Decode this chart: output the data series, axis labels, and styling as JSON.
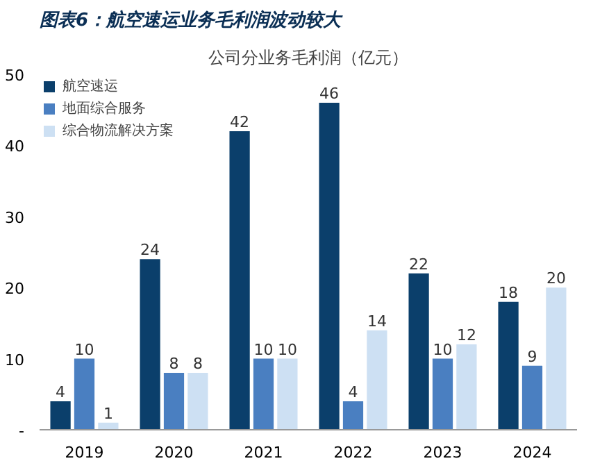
{
  "chart_data": {
    "type": "bar",
    "title": "图表6：航空速运业务毛利润波动较大",
    "subtitle": "公司分业务毛利润（亿元）",
    "categories": [
      "2019",
      "2020",
      "2021",
      "2022",
      "2023",
      "2024"
    ],
    "series": [
      {
        "name": "航空速运",
        "color": "#0b3f6b",
        "values": [
          4,
          24,
          42,
          46,
          22,
          18
        ]
      },
      {
        "name": "地面综合服务",
        "color": "#4a7fc1",
        "values": [
          10,
          8,
          10,
          4,
          10,
          9
        ]
      },
      {
        "name": "综合物流解决方案",
        "color": "#cde0f3",
        "values": [
          1,
          8,
          10,
          14,
          12,
          20
        ]
      }
    ],
    "ylim": [
      0,
      50
    ],
    "yticks": [
      {
        "value": 0,
        "label": "-"
      },
      10,
      20,
      30,
      40,
      50
    ],
    "data_labels": true,
    "legend": "top",
    "grid": false
  }
}
